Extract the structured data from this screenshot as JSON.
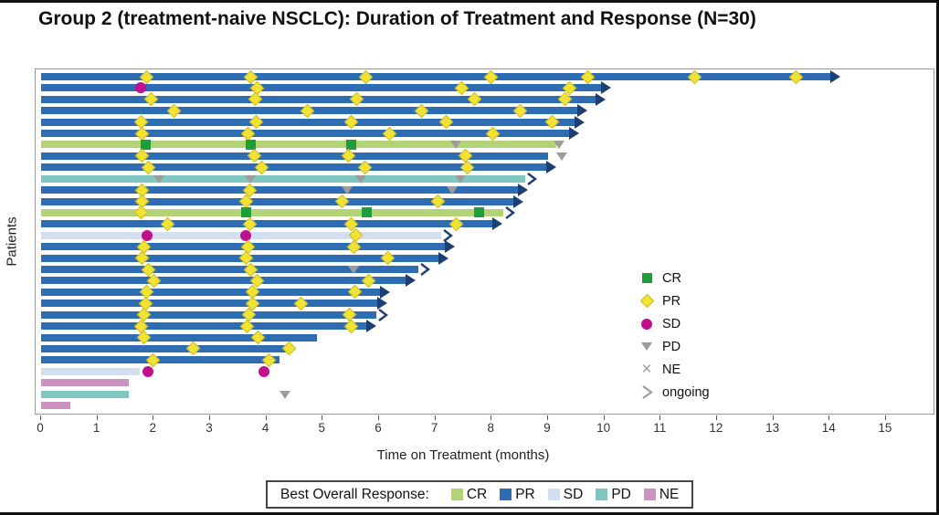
{
  "title": "Group 2 (treatment-naive NSCLC): Duration of Treatment and Response (N=30)",
  "colors": {
    "bor": {
      "CR": "#b3d377",
      "PR": "#2e6db4",
      "SD": "#d3dfee",
      "PD": "#7fc6c1",
      "NE": "#cc92c2"
    },
    "marker": {
      "CR": "#1e9d3b",
      "PR": "#f0e333",
      "SD": "#c01090",
      "PD": "#9c9c9c"
    },
    "arrow": "#1e3f73",
    "legend_gray": "#9c9c9c",
    "plot_border": "#999999"
  },
  "chart_data": {
    "type": "swimmer-bar",
    "title": "Group 2 (treatment-naive NSCLC): Duration of Treatment and Response (N=30)",
    "ylabel": "Patients",
    "xlabel": "Time on Treatment (months)",
    "xlim": [
      0,
      15
    ],
    "x_ticks": [
      0,
      1,
      2,
      3,
      4,
      5,
      6,
      7,
      8,
      9,
      10,
      11,
      12,
      13,
      14,
      15
    ],
    "grid": false,
    "n_patients": 30,
    "marker_legend": [
      {
        "label": "CR",
        "marker": "square",
        "color": "#1e9d3b"
      },
      {
        "label": "PR",
        "marker": "diamond",
        "color": "#f0e333"
      },
      {
        "label": "SD",
        "marker": "circle",
        "color": "#c01090"
      },
      {
        "label": "PD",
        "marker": "triangle",
        "color": "#9c9c9c"
      },
      {
        "label": "NE",
        "marker": "x",
        "color": "#9c9c9c"
      },
      {
        "label": "ongoing",
        "marker": "open-arrow",
        "color": "#9c9c9c"
      }
    ],
    "bar_legend_title": "Best Overall Response:",
    "bar_legend": [
      {
        "label": "CR",
        "color": "#b3d377"
      },
      {
        "label": "PR",
        "color": "#2e6db4"
      },
      {
        "label": "SD",
        "color": "#d3dfee"
      },
      {
        "label": "PD",
        "color": "#7fc6c1"
      },
      {
        "label": "NE",
        "color": "#cc92c2"
      }
    ],
    "patients": [
      {
        "bor": "PR",
        "end": 14.05,
        "arrow": "filled",
        "markers": [
          {
            "type": "PR",
            "month": 1.88
          },
          {
            "type": "PR",
            "month": 3.72
          },
          {
            "type": "PR",
            "month": 5.76
          },
          {
            "type": "PR",
            "month": 7.98
          },
          {
            "type": "PR",
            "month": 9.7
          },
          {
            "type": "PR",
            "month": 11.6
          },
          {
            "type": "PR",
            "month": 13.4
          }
        ]
      },
      {
        "bor": "PR",
        "end": 9.97,
        "arrow": "filled",
        "markers": [
          {
            "type": "SD",
            "month": 1.76
          },
          {
            "type": "PR",
            "month": 3.83
          },
          {
            "type": "PR",
            "month": 7.47
          },
          {
            "type": "PR",
            "month": 9.38
          }
        ]
      },
      {
        "bor": "PR",
        "end": 9.88,
        "arrow": "filled",
        "markers": [
          {
            "type": "PR",
            "month": 1.95
          },
          {
            "type": "PR",
            "month": 3.8
          },
          {
            "type": "PR",
            "month": 5.6
          },
          {
            "type": "PR",
            "month": 7.7
          },
          {
            "type": "PR",
            "month": 9.3
          }
        ]
      },
      {
        "bor": "PR",
        "end": 9.55,
        "arrow": "filled",
        "markers": [
          {
            "type": "PR",
            "month": 2.36
          },
          {
            "type": "PR",
            "month": 4.72
          },
          {
            "type": "PR",
            "month": 6.75
          },
          {
            "type": "PR",
            "month": 8.5
          }
        ]
      },
      {
        "bor": "PR",
        "end": 9.5,
        "arrow": "filled",
        "markers": [
          {
            "type": "PR",
            "month": 1.77
          },
          {
            "type": "PR",
            "month": 3.82
          },
          {
            "type": "PR",
            "month": 5.5
          },
          {
            "type": "PR",
            "month": 7.2
          },
          {
            "type": "PR",
            "month": 9.07
          }
        ]
      },
      {
        "bor": "PR",
        "end": 9.4,
        "arrow": "filled",
        "markers": [
          {
            "type": "PR",
            "month": 1.8
          },
          {
            "type": "PR",
            "month": 3.67
          },
          {
            "type": "PR",
            "month": 6.18
          },
          {
            "type": "PR",
            "month": 8.02
          }
        ]
      },
      {
        "bor": "CR",
        "end": 9.15,
        "arrow": null,
        "markers": [
          {
            "type": "CR",
            "month": 1.85
          },
          {
            "type": "CR",
            "month": 3.72
          },
          {
            "type": "CR",
            "month": 5.5
          },
          {
            "type": "PD",
            "month": 7.37
          },
          {
            "type": "PD",
            "month": 9.2
          }
        ]
      },
      {
        "bor": "PR",
        "end": 9.0,
        "arrow": null,
        "markers": [
          {
            "type": "PR",
            "month": 1.8
          },
          {
            "type": "PR",
            "month": 3.78
          },
          {
            "type": "PR",
            "month": 5.45
          },
          {
            "type": "PR",
            "month": 7.53
          },
          {
            "type": "PD",
            "month": 9.25
          }
        ]
      },
      {
        "bor": "PR",
        "end": 9.0,
        "arrow": "filled",
        "markers": [
          {
            "type": "PR",
            "month": 1.9
          },
          {
            "type": "PR",
            "month": 3.91
          },
          {
            "type": "PR",
            "month": 5.75
          },
          {
            "type": "PR",
            "month": 7.57
          }
        ]
      },
      {
        "bor": "PD",
        "end": 8.6,
        "arrow": "open",
        "markers": [
          {
            "type": "PD",
            "month": 2.1
          },
          {
            "type": "PD",
            "month": 3.72
          },
          {
            "type": "PD",
            "month": 5.67
          },
          {
            "type": "PD",
            "month": 7.45
          }
        ]
      },
      {
        "bor": "PR",
        "end": 8.5,
        "arrow": "filled",
        "markers": [
          {
            "type": "PR",
            "month": 1.8
          },
          {
            "type": "PR",
            "month": 3.7
          },
          {
            "type": "PD",
            "month": 5.44
          },
          {
            "type": "PD",
            "month": 7.3
          }
        ]
      },
      {
        "bor": "PR",
        "end": 8.42,
        "arrow": "filled",
        "markers": [
          {
            "type": "PR",
            "month": 1.8
          },
          {
            "type": "PR",
            "month": 3.64
          },
          {
            "type": "PR",
            "month": 5.35
          },
          {
            "type": "PR",
            "month": 7.05
          }
        ]
      },
      {
        "bor": "CR",
        "end": 8.2,
        "arrow": "open",
        "markers": [
          {
            "type": "PR",
            "month": 1.77
          },
          {
            "type": "CR",
            "month": 3.64
          },
          {
            "type": "CR",
            "month": 5.78
          },
          {
            "type": "CR",
            "month": 7.78
          }
        ]
      },
      {
        "bor": "PR",
        "end": 8.05,
        "arrow": "filled",
        "markers": [
          {
            "type": "PR",
            "month": 2.24
          },
          {
            "type": "PR",
            "month": 3.7
          },
          {
            "type": "PR",
            "month": 5.5
          },
          {
            "type": "PR",
            "month": 7.37
          }
        ]
      },
      {
        "bor": "SD",
        "end": 7.1,
        "arrow": "open",
        "markers": [
          {
            "type": "SD",
            "month": 1.88
          },
          {
            "type": "SD",
            "month": 3.64
          },
          {
            "type": "PR",
            "month": 5.59
          }
        ]
      },
      {
        "bor": "PR",
        "end": 7.2,
        "arrow": "filled",
        "markers": [
          {
            "type": "PR",
            "month": 1.82
          },
          {
            "type": "PR",
            "month": 3.67
          },
          {
            "type": "PR",
            "month": 5.56
          }
        ]
      },
      {
        "bor": "PR",
        "end": 7.08,
        "arrow": "filled",
        "markers": [
          {
            "type": "PR",
            "month": 1.8
          },
          {
            "type": "PR",
            "month": 3.64
          },
          {
            "type": "PR",
            "month": 6.15
          }
        ]
      },
      {
        "bor": "PR",
        "end": 6.7,
        "arrow": "open",
        "markers": [
          {
            "type": "PR",
            "month": 1.9
          },
          {
            "type": "PR",
            "month": 3.72
          },
          {
            "type": "PD",
            "month": 5.55
          }
        ]
      },
      {
        "bor": "PR",
        "end": 6.5,
        "arrow": "filled",
        "markers": [
          {
            "type": "PR",
            "month": 2.0
          },
          {
            "type": "PR",
            "month": 3.83
          },
          {
            "type": "PR",
            "month": 5.82
          }
        ]
      },
      {
        "bor": "PR",
        "end": 6.05,
        "arrow": "filled",
        "markers": [
          {
            "type": "PR",
            "month": 1.88
          },
          {
            "type": "PR",
            "month": 3.75
          },
          {
            "type": "PR",
            "month": 5.57
          }
        ]
      },
      {
        "bor": "PR",
        "end": 6.0,
        "arrow": "filled",
        "markers": [
          {
            "type": "PR",
            "month": 1.85
          },
          {
            "type": "PR",
            "month": 3.75
          },
          {
            "type": "PR",
            "month": 4.61
          }
        ]
      },
      {
        "bor": "PR",
        "end": 5.95,
        "arrow": "open",
        "markers": [
          {
            "type": "PR",
            "month": 1.83
          },
          {
            "type": "PR",
            "month": 3.69
          },
          {
            "type": "PR",
            "month": 5.47
          }
        ]
      },
      {
        "bor": "PR",
        "end": 5.8,
        "arrow": "filled",
        "markers": [
          {
            "type": "PR",
            "month": 1.77
          },
          {
            "type": "PR",
            "month": 3.66
          },
          {
            "type": "PR",
            "month": 5.5
          }
        ]
      },
      {
        "bor": "PR",
        "end": 4.89,
        "arrow": null,
        "markers": [
          {
            "type": "PR",
            "month": 1.82
          },
          {
            "type": "PR",
            "month": 3.85
          }
        ]
      },
      {
        "bor": "PR",
        "end": 4.42,
        "arrow": null,
        "markers": [
          {
            "type": "PR",
            "month": 2.7
          },
          {
            "type": "PR",
            "month": 4.4
          }
        ]
      },
      {
        "bor": "PR",
        "end": 4.23,
        "arrow": null,
        "markers": [
          {
            "type": "PR",
            "month": 1.99
          },
          {
            "type": "PR",
            "month": 4.04
          }
        ]
      },
      {
        "bor": "SD",
        "end": 1.75,
        "arrow": null,
        "markers": [
          {
            "type": "SD",
            "month": 1.9
          },
          {
            "type": "SD",
            "month": 3.95
          }
        ]
      },
      {
        "bor": "NE",
        "end": 1.55,
        "arrow": null,
        "markers": []
      },
      {
        "bor": "PD",
        "end": 1.55,
        "arrow": null,
        "markers": [
          {
            "type": "PD",
            "month": 4.33
          }
        ]
      },
      {
        "bor": "NE",
        "end": 0.52,
        "arrow": null,
        "markers": []
      }
    ]
  }
}
